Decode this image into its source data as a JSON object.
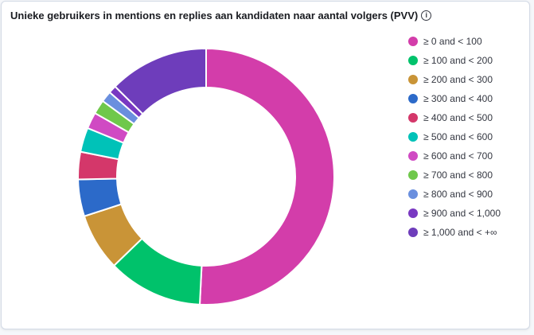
{
  "panel": {
    "title": "Unieke gebruikers in mentions en replies aan kandidaten naar aantal volgers (PVV)",
    "info_icon": "info-icon"
  },
  "chart_data": {
    "type": "pie",
    "variant": "donut",
    "title": "Unieke gebruikers in mentions en replies aan kandidaten naar aantal volgers (PVV)",
    "legend_position": "right",
    "categories": [
      "≥ 0 and < 100",
      "≥ 100 and < 200",
      "≥ 200 and < 300",
      "≥ 300 and < 400",
      "≥ 400 and < 500",
      "≥ 500 and < 600",
      "≥ 600 and < 700",
      "≥ 700 and < 800",
      "≥ 800 and < 900",
      "≥ 900 and < 1,000",
      "≥ 1,000 and < +∞"
    ],
    "values": [
      51.3,
      12.1,
      7.3,
      4.7,
      3.5,
      3.1,
      2.1,
      1.8,
      1.4,
      1.0,
      12.7
    ],
    "colors": [
      "#d33daa",
      "#00c26b",
      "#c99437",
      "#2c6ac9",
      "#d4376a",
      "#00c2b8",
      "#d04ac3",
      "#6fc84b",
      "#6a8fde",
      "#7938c2",
      "#6e3dbb"
    ]
  }
}
